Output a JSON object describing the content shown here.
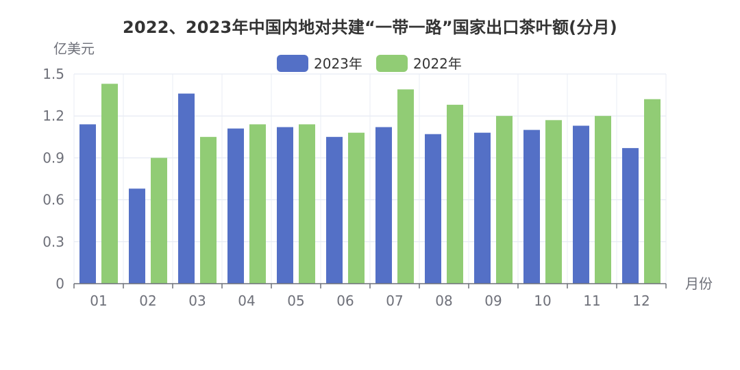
{
  "chart_data": {
    "type": "bar",
    "title": "2022、2023年中国内地对共建“一带一路”国家出口茶叶额(分月)",
    "ylabel": "亿美元",
    "xlabel": "月份",
    "categories": [
      "01",
      "02",
      "03",
      "04",
      "05",
      "06",
      "07",
      "08",
      "09",
      "10",
      "11",
      "12"
    ],
    "ylim": [
      0,
      1.5
    ],
    "yticks": [
      "0",
      "0.3",
      "0.6",
      "0.9",
      "1.2",
      "1.5"
    ],
    "legend_position": "top-center",
    "grid": true,
    "series": [
      {
        "name": "2023年",
        "color": "#5470c6",
        "values": [
          1.14,
          0.68,
          1.36,
          1.11,
          1.12,
          1.05,
          1.12,
          1.07,
          1.08,
          1.1,
          1.13,
          0.97
        ]
      },
      {
        "name": "2022年",
        "color": "#91cc75",
        "values": [
          1.43,
          0.9,
          1.05,
          1.14,
          1.14,
          1.08,
          1.39,
          1.28,
          1.2,
          1.17,
          1.2,
          1.32
        ]
      }
    ]
  }
}
